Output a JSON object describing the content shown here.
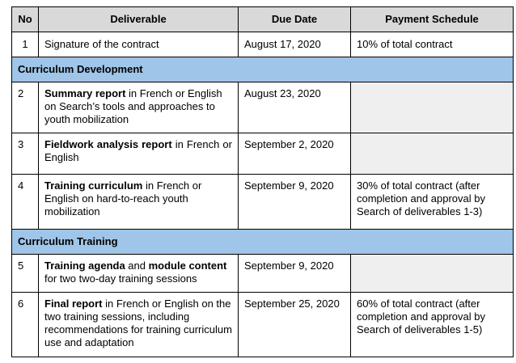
{
  "table": {
    "headers": {
      "no": "No",
      "deliverable": "Deliverable",
      "due_date": "Due Date",
      "payment": "Payment Schedule"
    },
    "colors": {
      "header_bg": "#d9d9d9",
      "section_bg": "#9fc5e8",
      "empty_cell_bg": "#efefef"
    },
    "row1": {
      "no": "1",
      "deliverable": "Signature of the contract",
      "due_date": "August 17, 2020",
      "payment": "10% of total contract"
    },
    "section1": "Curriculum Development",
    "row2": {
      "no": "2",
      "bold": "Summary report",
      "rest": " in French or English on Search’s tools and approaches to youth mobilization",
      "due_date": "August 23, 2020",
      "payment": ""
    },
    "row3": {
      "no": "3",
      "bold": "Fieldwork analysis report",
      "rest": " in French or English",
      "due_date": "September 2, 2020",
      "payment": ""
    },
    "row4": {
      "no": "4",
      "bold": "Training curriculum",
      "rest": " in French or English on hard-to-reach youth mobilization",
      "due_date": "September 9, 2020",
      "payment": "30% of total contract (after completion and approval by Search of deliverables 1-3)"
    },
    "section2": "Curriculum Training",
    "row5": {
      "no": "5",
      "bold": "Training agenda",
      "mid": " and ",
      "bold2": "module content",
      "rest": " for two two-day training sessions",
      "due_date": "September 9, 2020",
      "payment": ""
    },
    "row6": {
      "no": "6",
      "bold": "Final report",
      "rest": " in French or English on the two training sessions, including recommendations for training curriculum use and adaptation",
      "due_date": "September 25, 2020",
      "payment": "60% of total contract (after completion and approval by Search of deliverables 1-5)"
    }
  }
}
